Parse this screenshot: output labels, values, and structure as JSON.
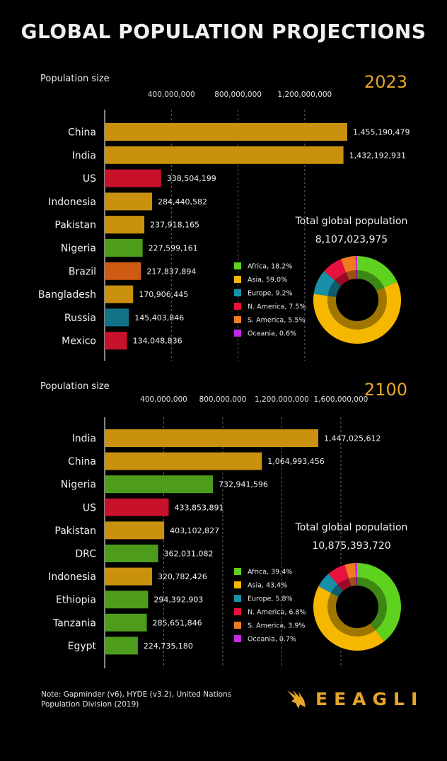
{
  "title": "GLOBAL POPULATION PROJECTIONS",
  "note": "Note: Gapminder (v6), HYDE (v3.2), United Nations Population Division (2019)",
  "brand": {
    "name": "EEAGLI",
    "logo_icon": "eagle-logo-icon",
    "color": "#e6a52a"
  },
  "colors": {
    "asia": "#c9910e",
    "africa": "#4e9c1c",
    "north_america": "#c8122b",
    "south_america": "#cf5a12",
    "europe": "#127387",
    "year": "#e6a52a"
  },
  "chart_data": [
    {
      "type": "bar",
      "orientation": "horizontal",
      "year_label": "2023",
      "ylabel": "Population size",
      "xticks": [
        "400,000,000",
        "800,000,000",
        "1,200,000,000"
      ],
      "xtick_values": [
        400000000,
        800000000,
        1200000000
      ],
      "grid": "dashed vertical",
      "categories": [
        "China",
        "India",
        "US",
        "Indonesia",
        "Pakistan",
        "Nigeria",
        "Brazil",
        "Bangladesh",
        "Russia",
        "Mexico"
      ],
      "values": [
        1455190479,
        1432192931,
        338504199,
        284440582,
        237918165,
        227599161,
        217837894,
        170906445,
        145403846,
        134048836
      ],
      "value_labels": [
        "1,455,190,479",
        "1,432,192,931",
        "338,504,199",
        "284,440,582",
        "237,918,165",
        "227,599,161",
        "217,837,894",
        "170,906,445",
        "145,403,846",
        "134,048,836"
      ],
      "bar_colors": [
        "#c9910e",
        "#c9910e",
        "#c8122b",
        "#c9910e",
        "#c9910e",
        "#4e9c1c",
        "#cf5a12",
        "#c9910e",
        "#127387",
        "#c8122b"
      ],
      "total": {
        "label": "Total global population",
        "value": "8,107,023,975"
      },
      "donut": {
        "type": "pie",
        "legend_position": "left",
        "slices": [
          {
            "name": "Africa",
            "label": "Africa, 18.2%",
            "value": 18.2,
            "color": "#5fd11f"
          },
          {
            "name": "Asia",
            "label": "Asia, 59.0%",
            "value": 59.0,
            "color": "#f5b700"
          },
          {
            "name": "Europe",
            "label": "Europe, 9.2%",
            "value": 9.2,
            "color": "#1890a8"
          },
          {
            "name": "N. America",
            "label": "N. America, 7.5%",
            "value": 7.5,
            "color": "#e8123e"
          },
          {
            "name": "S. America",
            "label": "S. America, 5.5%",
            "value": 5.5,
            "color": "#f07b1f"
          },
          {
            "name": "Oceania",
            "label": "Oceania, 0.6%",
            "value": 0.6,
            "color": "#c429e6"
          }
        ]
      }
    },
    {
      "type": "bar",
      "orientation": "horizontal",
      "year_label": "2100",
      "ylabel": "Population size",
      "xticks": [
        "400,000,000",
        "800,000,000",
        "1,200,000,000",
        "1,600,000,000"
      ],
      "xtick_values": [
        400000000,
        800000000,
        1200000000,
        1600000000
      ],
      "grid": "dashed vertical",
      "categories": [
        "India",
        "China",
        "Nigeria",
        "US",
        "Pakistan",
        "DRC",
        "Indonesia",
        "Ethiopia",
        "Tanzania",
        "Egypt"
      ],
      "values": [
        1447025612,
        1064993456,
        732941596,
        433853891,
        403102827,
        362031082,
        320782426,
        294392903,
        285651846,
        224735180
      ],
      "value_labels": [
        "1,447,025,612",
        "1,064,993,456",
        "732,941,596",
        "433,853,891",
        "403,102,827",
        "362,031,082",
        "320,782,426",
        "294,392,903",
        "285,651,846",
        "224,735,180"
      ],
      "bar_colors": [
        "#c9910e",
        "#c9910e",
        "#4e9c1c",
        "#c8122b",
        "#c9910e",
        "#4e9c1c",
        "#c9910e",
        "#4e9c1c",
        "#4e9c1c",
        "#4e9c1c"
      ],
      "total": {
        "label": "Total global population",
        "value": "10,875,393,720"
      },
      "donut": {
        "type": "pie",
        "legend_position": "left",
        "slices": [
          {
            "name": "Africa",
            "label": "Africa, 39.4%",
            "value": 39.4,
            "color": "#5fd11f"
          },
          {
            "name": "Asia",
            "label": "Asia, 43.4%",
            "value": 43.4,
            "color": "#f5b700"
          },
          {
            "name": "Europe",
            "label": "Europe, 5.8%",
            "value": 5.8,
            "color": "#1890a8"
          },
          {
            "name": "N. America",
            "label": "N. America, 6.8%",
            "value": 6.8,
            "color": "#e8123e"
          },
          {
            "name": "S. America",
            "label": "S. America, 3.9%",
            "value": 3.9,
            "color": "#f07b1f"
          },
          {
            "name": "Oceania",
            "label": "Oceania, 0.7%",
            "value": 0.7,
            "color": "#c429e6"
          }
        ]
      }
    }
  ]
}
